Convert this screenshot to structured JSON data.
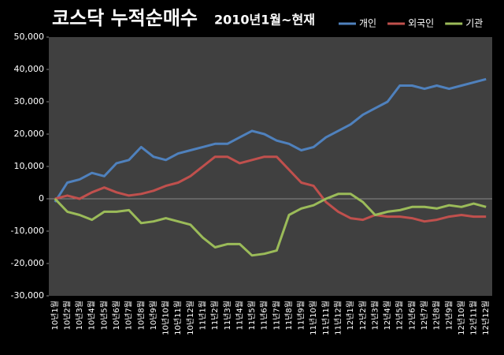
{
  "chart_data": {
    "type": "line",
    "title": "코스닥 누적순매수",
    "subtitle": "2010년1월~현재",
    "categories": [
      "10년1월",
      "10년2월",
      "10년3월",
      "10년4월",
      "10년5월",
      "10년6월",
      "10년7월",
      "10년8월",
      "10년9월",
      "10년10월",
      "10년11월",
      "10년12월",
      "11년1월",
      "11년2월",
      "11년3월",
      "11년4월",
      "11년5월",
      "11년6월",
      "11년7월",
      "11년8월",
      "11년9월",
      "11년10월",
      "11년11월",
      "11년12월",
      "12년1월",
      "12년2월",
      "12년3월",
      "12년4월",
      "12년5월",
      "12년6월",
      "12년7월",
      "12년8월",
      "12년9월",
      "12년10월",
      "12년11월",
      "12년12월"
    ],
    "series": [
      {
        "name": "개인",
        "color": "#4f81bd",
        "values": [
          -1000,
          5000,
          6000,
          8000,
          7000,
          11000,
          12000,
          16000,
          13000,
          12000,
          14000,
          15000,
          16000,
          17000,
          17000,
          19000,
          21000,
          20000,
          18000,
          17000,
          15000,
          16000,
          19000,
          21000,
          23000,
          26000,
          28000,
          30000,
          35000,
          35000,
          34000,
          35000,
          34000,
          35000,
          36000,
          37000
        ]
      },
      {
        "name": "외국인",
        "color": "#c0504d",
        "values": [
          0,
          1000,
          0,
          2000,
          3500,
          2000,
          1000,
          1500,
          2500,
          4000,
          5000,
          7000,
          10000,
          13000,
          13000,
          11000,
          12000,
          13000,
          13000,
          9000,
          5000,
          4000,
          -1000,
          -4000,
          -6000,
          -6500,
          -5000,
          -5500,
          -5500,
          -6000,
          -7000,
          -6500,
          -5500,
          -5000,
          -5500,
          -5500
        ]
      },
      {
        "name": "기관",
        "color": "#9bbb59",
        "values": [
          0,
          -4000,
          -5000,
          -6500,
          -4000,
          -4000,
          -3500,
          -7500,
          -7000,
          -6000,
          -7000,
          -8000,
          -12000,
          -15000,
          -14000,
          -14000,
          -17500,
          -17000,
          -16000,
          -5000,
          -3000,
          -2000,
          0,
          1500,
          1500,
          -1000,
          -5000,
          -4000,
          -3500,
          -2500,
          -2500,
          -3000,
          -2000,
          -2500,
          -1500,
          -2500
        ]
      }
    ],
    "ylim": [
      -30000,
      50000
    ],
    "yticks": [
      {
        "value": -30000,
        "label": "-30,000"
      },
      {
        "value": -20000,
        "label": "-20,000"
      },
      {
        "value": -10000,
        "label": "-10,000"
      },
      0,
      {
        "value": 10000,
        "label": "10,000"
      },
      {
        "value": 20000,
        "label": "20,000"
      },
      {
        "value": 30000,
        "label": "30,000"
      },
      {
        "value": 40000,
        "label": "40,000"
      },
      {
        "value": 50000,
        "label": "50,000"
      }
    ],
    "grid": false,
    "legend": "top-right"
  }
}
